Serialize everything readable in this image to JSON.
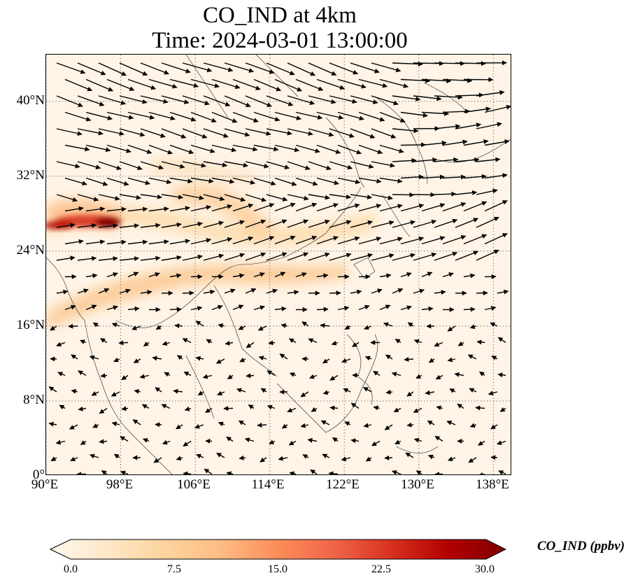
{
  "title_line1": "CO_IND at 4km",
  "title_line2": "Time: 2024-03-01 13:00:00",
  "map": {
    "lon_range": [
      90,
      140
    ],
    "lat_range": [
      0,
      45
    ],
    "lon_ticks": [
      "90°E",
      "98°E",
      "106°E",
      "114°E",
      "122°E",
      "130°E",
      "138°E"
    ],
    "lat_ticks": [
      "0°",
      "8°N",
      "16°N",
      "24°N",
      "32°N",
      "40°N"
    ],
    "gridlines": "dotted",
    "field": "CO_IND concentration (filled) with wind vectors"
  },
  "colorbar": {
    "label": "CO_IND (ppbv)",
    "ticks": [
      "0.0",
      "7.5",
      "15.0",
      "22.5",
      "30.0"
    ],
    "min": 0,
    "max": 30,
    "extend": "both",
    "colormap": "OrRd",
    "colors": [
      "#fff7ec",
      "#fee8c8",
      "#fdd49e",
      "#fdbb84",
      "#fc8d59",
      "#ef6548",
      "#d7301f",
      "#b30000",
      "#7f0000"
    ]
  }
}
